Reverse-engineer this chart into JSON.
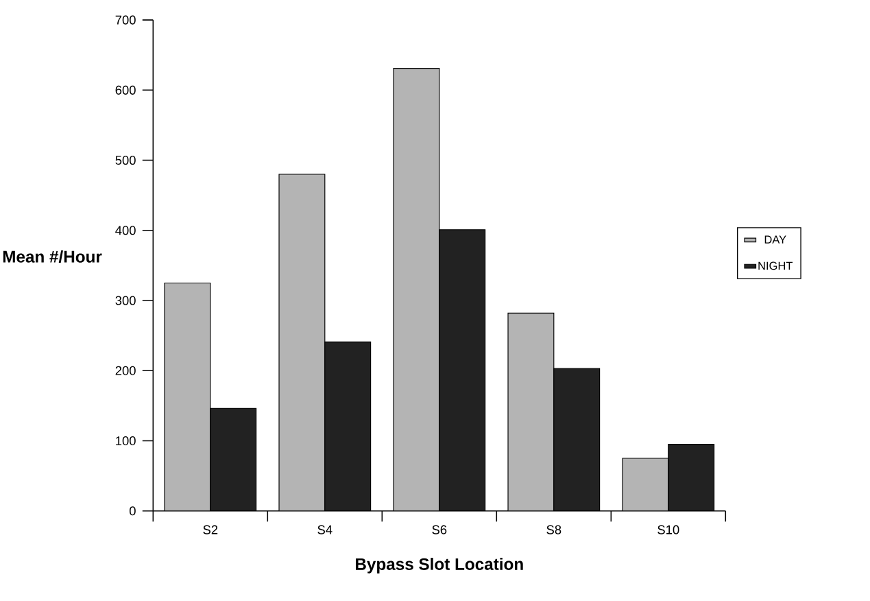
{
  "chart_data": {
    "type": "bar",
    "xlabel": "Bypass Slot Location",
    "ylabel": "Mean #/Hour",
    "categories": [
      "S2",
      "S4",
      "S6",
      "S8",
      "S10"
    ],
    "series": [
      {
        "name": "DAY",
        "color": "#b4b4b4",
        "values": [
          325,
          480,
          631,
          282,
          75
        ]
      },
      {
        "name": "NIGHT",
        "color": "#222222",
        "values": [
          146,
          241,
          401,
          203,
          95
        ]
      }
    ],
    "ylim": [
      0,
      700
    ],
    "yticks": [
      0,
      100,
      200,
      300,
      400,
      500,
      600,
      700
    ],
    "legend": "right"
  }
}
